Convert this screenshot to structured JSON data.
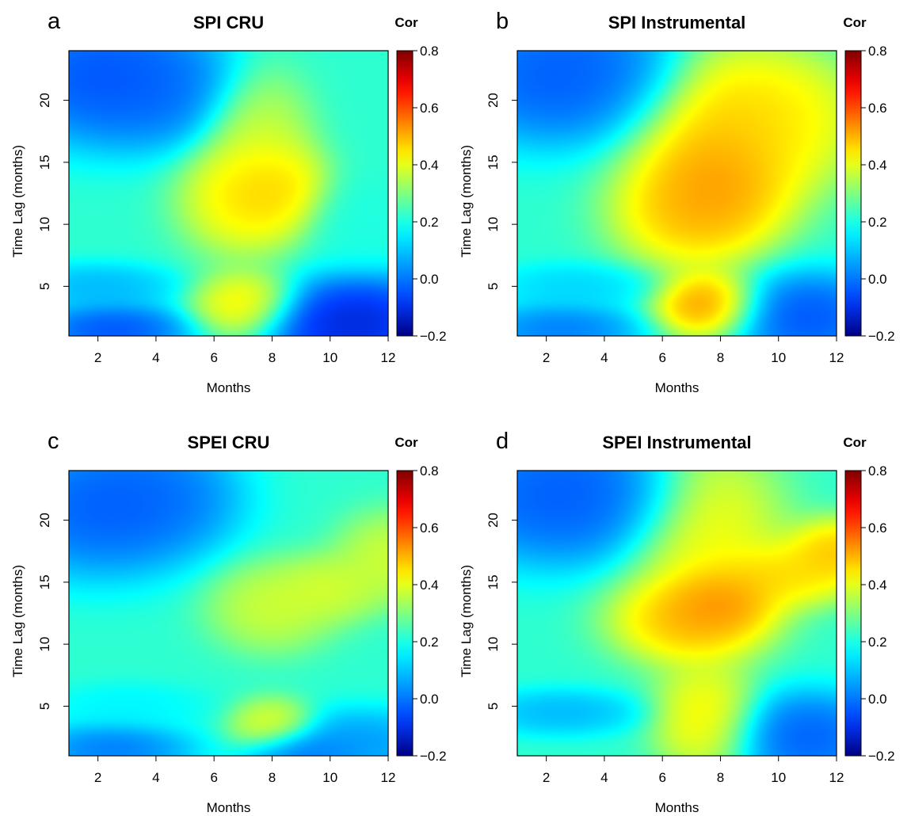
{
  "chart_data": [
    {
      "type": "heatmap",
      "panel_letter": "a",
      "title": "SPI CRU",
      "xlabel": "Months",
      "ylabel": "Time Lag (months)",
      "xlim": [
        1,
        12
      ],
      "ylim": [
        1,
        24
      ],
      "xticks": [
        2,
        4,
        6,
        8,
        10,
        12
      ],
      "yticks": [
        5,
        10,
        15,
        20
      ],
      "colorbar": {
        "title": "Cor",
        "range": [
          -0.2,
          0.8
        ],
        "ticks": [
          "-0.2",
          "0.0",
          "0.2",
          "0.4",
          "0.6",
          "0.8"
        ]
      },
      "features": [
        {
          "x": 2,
          "y": 22,
          "value": -0.12,
          "sx": 2.0,
          "sy": 3.0
        },
        {
          "x": 4,
          "y": 21,
          "value": -0.05,
          "sx": 1.5,
          "sy": 2.5
        },
        {
          "x": 7,
          "y": 12,
          "value": 0.5,
          "sx": 1.2,
          "sy": 2.5
        },
        {
          "x": 8,
          "y": 13,
          "value": 0.52,
          "sx": 1.0,
          "sy": 2.0
        },
        {
          "x": 7.5,
          "y": 17,
          "value": 0.42,
          "sx": 1.0,
          "sy": 3.0
        },
        {
          "x": 7,
          "y": 3.5,
          "value": 0.5,
          "sx": 1.0,
          "sy": 1.5
        },
        {
          "x": 11,
          "y": 2.5,
          "value": -0.18,
          "sx": 1.5,
          "sy": 2.0
        },
        {
          "x": 10.5,
          "y": 1.5,
          "value": -0.15,
          "sx": 1.5,
          "sy": 1.5
        },
        {
          "x": 2.5,
          "y": 1.5,
          "value": -0.12,
          "sx": 1.5,
          "sy": 1.2
        },
        {
          "x": 2,
          "y": 5,
          "value": 0.05,
          "sx": 1.5,
          "sy": 1.0
        },
        {
          "x": 11,
          "y": 10,
          "value": 0.2,
          "sx": 1.0,
          "sy": 2.0
        }
      ]
    },
    {
      "type": "heatmap",
      "panel_letter": "b",
      "title": "SPI Instrumental",
      "xlabel": "Months",
      "ylabel": "Time Lag (months)",
      "xlim": [
        1,
        12
      ],
      "ylim": [
        1,
        24
      ],
      "xticks": [
        2,
        4,
        6,
        8,
        10,
        12
      ],
      "yticks": [
        5,
        10,
        15,
        20
      ],
      "colorbar": {
        "title": "Cor",
        "range": [
          -0.2,
          0.8
        ],
        "ticks": [
          "-0.2",
          "0.0",
          "0.2",
          "0.4",
          "0.6",
          "0.8"
        ]
      },
      "features": [
        {
          "x": 2,
          "y": 22,
          "value": -0.1,
          "sx": 2.0,
          "sy": 3.0
        },
        {
          "x": 4,
          "y": 22,
          "value": -0.05,
          "sx": 1.5,
          "sy": 2.5
        },
        {
          "x": 8,
          "y": 14,
          "value": 0.6,
          "sx": 1.5,
          "sy": 3.0
        },
        {
          "x": 7,
          "y": 11,
          "value": 0.55,
          "sx": 1.5,
          "sy": 2.5
        },
        {
          "x": 8.5,
          "y": 19,
          "value": 0.52,
          "sx": 2.0,
          "sy": 3.0
        },
        {
          "x": 10,
          "y": 18,
          "value": 0.46,
          "sx": 1.5,
          "sy": 3.0
        },
        {
          "x": 7.5,
          "y": 3.5,
          "value": 0.62,
          "sx": 1.0,
          "sy": 1.5
        },
        {
          "x": 11,
          "y": 2.5,
          "value": -0.12,
          "sx": 1.5,
          "sy": 2.0
        },
        {
          "x": 2.5,
          "y": 1.5,
          "value": -0.05,
          "sx": 1.5,
          "sy": 1.2
        },
        {
          "x": 3,
          "y": 5,
          "value": 0.1,
          "sx": 1.5,
          "sy": 1.0
        }
      ]
    },
    {
      "type": "heatmap",
      "panel_letter": "c",
      "title": "SPEI CRU",
      "xlabel": "Months",
      "ylabel": "Time Lag (months)",
      "xlim": [
        1,
        12
      ],
      "ylim": [
        1,
        24
      ],
      "xticks": [
        2,
        4,
        6,
        8,
        10,
        12
      ],
      "yticks": [
        5,
        10,
        15,
        20
      ],
      "colorbar": {
        "title": "Cor",
        "range": [
          -0.2,
          0.8
        ],
        "ticks": [
          "-0.2",
          "0.0",
          "0.2",
          "0.4",
          "0.6",
          "0.8"
        ]
      },
      "features": [
        {
          "x": 2,
          "y": 21,
          "value": -0.1,
          "sx": 2.0,
          "sy": 3.0
        },
        {
          "x": 4,
          "y": 22,
          "value": -0.05,
          "sx": 1.5,
          "sy": 2.5
        },
        {
          "x": 8,
          "y": 13,
          "value": 0.42,
          "sx": 1.2,
          "sy": 2.0
        },
        {
          "x": 10,
          "y": 14.5,
          "value": 0.42,
          "sx": 1.0,
          "sy": 1.5
        },
        {
          "x": 12,
          "y": 17,
          "value": 0.42,
          "sx": 1.0,
          "sy": 2.0
        },
        {
          "x": 8,
          "y": 3.5,
          "value": 0.45,
          "sx": 0.8,
          "sy": 1.2
        },
        {
          "x": 2.5,
          "y": 1.5,
          "value": -0.05,
          "sx": 1.5,
          "sy": 1.2
        },
        {
          "x": 9,
          "y": 1.2,
          "value": -0.05,
          "sx": 1.0,
          "sy": 1.0
        },
        {
          "x": 11,
          "y": 2,
          "value": 0.0,
          "sx": 1.5,
          "sy": 1.5
        },
        {
          "x": 3,
          "y": 5,
          "value": 0.15,
          "sx": 1.5,
          "sy": 1.0
        }
      ]
    },
    {
      "type": "heatmap",
      "panel_letter": "d",
      "title": "SPEI Instrumental",
      "xlabel": "Months",
      "ylabel": "Time Lag (months)",
      "xlim": [
        1,
        12
      ],
      "ylim": [
        1,
        24
      ],
      "xticks": [
        2,
        4,
        6,
        8,
        10,
        12
      ],
      "yticks": [
        5,
        10,
        15,
        20
      ],
      "colorbar": {
        "title": "Cor",
        "range": [
          -0.2,
          0.8
        ],
        "ticks": [
          "-0.2",
          "0.0",
          "0.2",
          "0.4",
          "0.6",
          "0.8"
        ]
      },
      "features": [
        {
          "x": 2,
          "y": 22,
          "value": -0.1,
          "sx": 2.0,
          "sy": 3.0
        },
        {
          "x": 4,
          "y": 22,
          "value": -0.05,
          "sx": 1.5,
          "sy": 2.5
        },
        {
          "x": 7,
          "y": 12,
          "value": 0.58,
          "sx": 1.5,
          "sy": 2.0
        },
        {
          "x": 8,
          "y": 13.5,
          "value": 0.6,
          "sx": 1.0,
          "sy": 1.5
        },
        {
          "x": 10,
          "y": 15.5,
          "value": 0.52,
          "sx": 1.5,
          "sy": 1.5
        },
        {
          "x": 12,
          "y": 17.5,
          "value": 0.55,
          "sx": 1.0,
          "sy": 1.5
        },
        {
          "x": 7.5,
          "y": 19,
          "value": 0.48,
          "sx": 1.5,
          "sy": 4.0
        },
        {
          "x": 7.5,
          "y": 4,
          "value": 0.5,
          "sx": 1.0,
          "sy": 2.5
        },
        {
          "x": 11,
          "y": 2.5,
          "value": -0.1,
          "sx": 1.5,
          "sy": 2.0
        },
        {
          "x": 2.5,
          "y": 4.5,
          "value": 0.05,
          "sx": 1.5,
          "sy": 1.0
        }
      ]
    }
  ]
}
